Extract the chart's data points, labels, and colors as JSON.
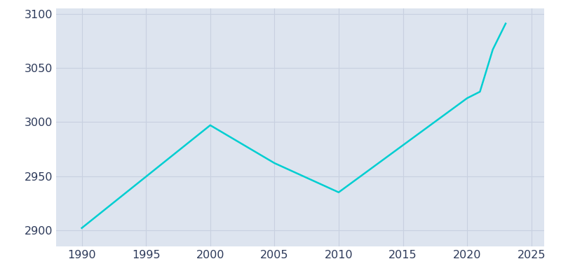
{
  "x": [
    1990,
    2000,
    2005,
    2010,
    2020,
    2021,
    2022,
    2023
  ],
  "y": [
    2902,
    2997,
    2962,
    2935,
    3022,
    3028,
    3067,
    3091
  ],
  "line_color": "#00CED1",
  "plot_background_color": "#dde4ef",
  "fig_background_color": "#ffffff",
  "grid_color": "#c8d0e0",
  "tick_color": "#2d3a5a",
  "xlim": [
    1988,
    2026
  ],
  "ylim": [
    2885,
    3105
  ],
  "xticks": [
    1990,
    1995,
    2000,
    2005,
    2010,
    2015,
    2020,
    2025
  ],
  "yticks": [
    2900,
    2950,
    3000,
    3050,
    3100
  ],
  "linewidth": 1.8,
  "tick_fontsize": 11.5
}
